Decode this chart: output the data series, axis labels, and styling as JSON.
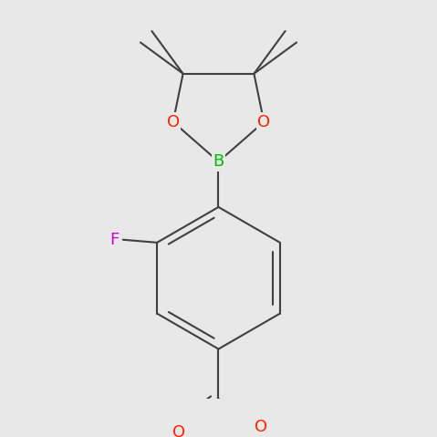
{
  "background_color": "#e8e8e8",
  "bond_color": "#404040",
  "bond_width": 1.5,
  "atom_colors": {
    "B": "#00bb00",
    "O": "#ff2200",
    "F": "#cc00cc"
  },
  "font_size": 12
}
